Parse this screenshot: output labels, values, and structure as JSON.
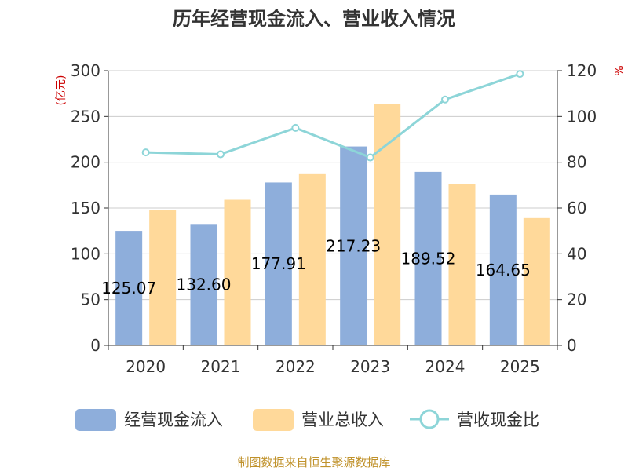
{
  "chart_data": {
    "type": "bar",
    "title": "历年经营现金流入、营业收入情况",
    "categories": [
      "2020",
      "2021",
      "2022",
      "2023",
      "2024",
      "2025"
    ],
    "left_axis": {
      "unit": "(亿元)",
      "ylim": [
        0,
        300
      ],
      "ticks": [
        "0",
        "50",
        "100",
        "150",
        "200",
        "250",
        "300"
      ]
    },
    "right_axis": {
      "unit": "%",
      "ylim": [
        0,
        120
      ],
      "ticks": [
        "0",
        "20",
        "40",
        "60",
        "80",
        "100",
        "120"
      ]
    },
    "series": [
      {
        "name": "经营现金流入",
        "type": "bar",
        "axis": "left",
        "color": "#8eaedb",
        "values": [
          125.07,
          132.6,
          177.91,
          217.23,
          189.52,
          164.65
        ],
        "labels": [
          "125.07",
          "132.60",
          "177.91",
          "217.23",
          "189.52",
          "164.65"
        ]
      },
      {
        "name": "营业总收入",
        "type": "bar",
        "axis": "left",
        "color": "#ffd99a",
        "values": [
          148,
          159,
          187,
          264,
          176,
          139
        ]
      },
      {
        "name": "营收现金比",
        "type": "line",
        "axis": "right",
        "color": "#8dd5d8",
        "values": [
          84.3,
          83.5,
          95.0,
          82.1,
          107.4,
          118.6
        ]
      }
    ],
    "grid": true,
    "legend_position": "bottom"
  },
  "source": "制图数据来自恒生聚源数据库",
  "colors": {
    "unit": "#cc0000",
    "axis": "#333333",
    "grid": "#cccccc",
    "source": "#c0922b"
  }
}
